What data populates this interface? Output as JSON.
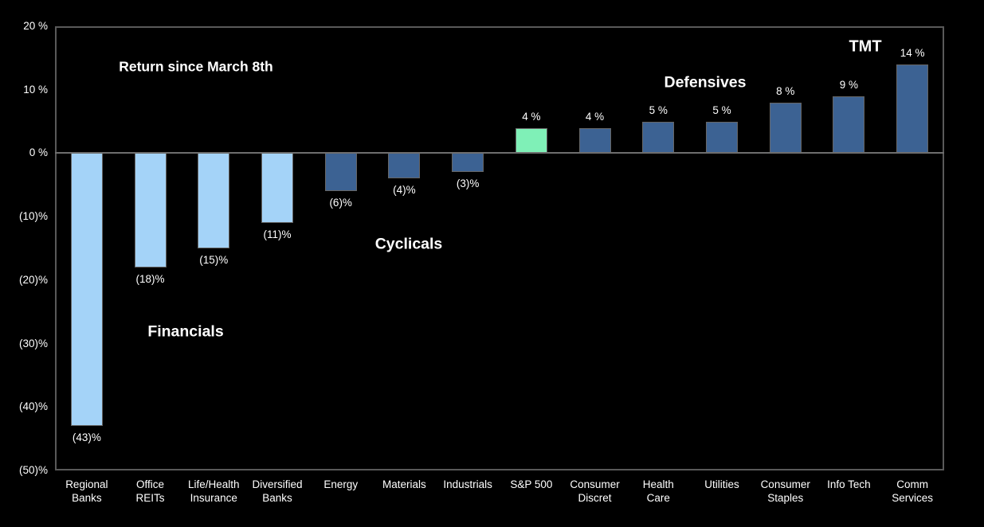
{
  "chart_data": {
    "type": "bar",
    "title": "Return since March 8th",
    "xlabel": "",
    "ylabel": "",
    "ylim": [
      -50,
      20
    ],
    "grid": false,
    "legend": false,
    "background_color": "#000000",
    "axis_border_color": "#595959",
    "zero_line_color": "#6e6e6e",
    "categories": [
      "Regional\nBanks",
      "Office\nREITs",
      "Life/Health\nInsurance",
      "Diversified\nBanks",
      "Energy",
      "Materials",
      "Industrials",
      "S&P 500",
      "Consumer\nDiscret",
      "Health\nCare",
      "Utilities",
      "Consumer\nStaples",
      "Info Tech",
      "Comm\nServices"
    ],
    "values": [
      -43,
      -18,
      -15,
      -11,
      -6,
      -4,
      -3,
      4,
      4,
      5,
      5,
      8,
      9,
      14
    ],
    "bar_labels": [
      "(43)%",
      "(18)%",
      "(15)%",
      "(11)%",
      "(6)%",
      "(4)%",
      "(3)%",
      "4 %",
      "4 %",
      "5 %",
      "5 %",
      "8 %",
      "9 %",
      "14 %"
    ],
    "bar_colors": [
      "#A4D3F8",
      "#A4D3F8",
      "#A4D3F8",
      "#A4D3F8",
      "#3C6293",
      "#3C6293",
      "#3C6293",
      "#7FF0B7",
      "#3C6293",
      "#3C6293",
      "#3C6293",
      "#3C6293",
      "#3C6293",
      "#3C6293"
    ],
    "group_colors": {
      "financials": "#A4D3F8",
      "sectors": "#3C6293",
      "sp500": "#7FF0B7"
    },
    "y_ticks": [
      {
        "value": 20,
        "label": "20 %"
      },
      {
        "value": 10,
        "label": "10 %"
      },
      {
        "value": 0,
        "label": "0 %"
      },
      {
        "value": -10,
        "label": "(10)%"
      },
      {
        "value": -20,
        "label": "(20)%"
      },
      {
        "value": -30,
        "label": "(30)%"
      },
      {
        "value": -40,
        "label": "(40)%"
      },
      {
        "value": -50,
        "label": "(50)%"
      }
    ],
    "annotations": [
      {
        "text": "Financials"
      },
      {
        "text": "Cyclicals"
      },
      {
        "text": "Defensives"
      },
      {
        "text": "TMT"
      }
    ]
  }
}
